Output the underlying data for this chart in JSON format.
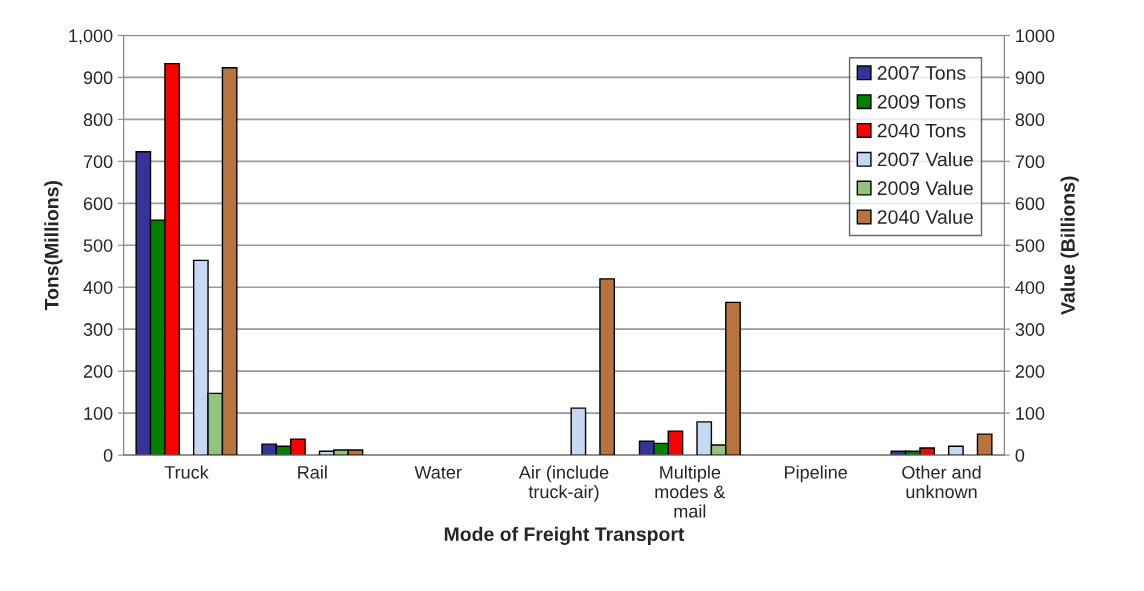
{
  "chart_data": {
    "type": "bar",
    "xlabel": "Mode of Freight Transport",
    "ylabel": "Tons(Millions)",
    "y2label": "Value (Billions)",
    "categories": [
      "Truck",
      "Rail",
      "Water",
      "Air (include\ntruck-air)",
      "Multiple\nmodes &\nmail",
      "Pipeline",
      "Other and\nunknown"
    ],
    "series": [
      {
        "name": "2007 Tons",
        "color": "#333399",
        "values": [
          723,
          26,
          null,
          null,
          33,
          null,
          9
        ]
      },
      {
        "name": "2009 Tons",
        "color": "#008000",
        "values": [
          560,
          21,
          null,
          null,
          28,
          null,
          9
        ]
      },
      {
        "name": "2040 Tons",
        "color": "#ff0000",
        "values": [
          933,
          38,
          null,
          null,
          57,
          null,
          17
        ]
      },
      {
        "name": "2007 Value",
        "color": "#c5d9f1",
        "axis": "y2",
        "values": [
          464,
          9,
          null,
          112,
          79,
          null,
          21
        ]
      },
      {
        "name": "2009 Value",
        "color": "#92c47d",
        "axis": "y2",
        "values": [
          147,
          12,
          null,
          null,
          24,
          null,
          null
        ]
      },
      {
        "name": "2040 Value",
        "color": "#b8733f",
        "axis": "y2",
        "values": [
          923,
          12,
          null,
          420,
          364,
          null,
          50
        ]
      }
    ],
    "ylim": [
      0,
      1000
    ],
    "yticks": [
      0,
      100,
      200,
      300,
      400,
      500,
      600,
      700,
      800,
      900,
      {
        "value": 1000,
        "label": "1,000"
      }
    ],
    "y2lim": [
      0,
      1000
    ],
    "y2ticks": [
      0,
      100,
      200,
      300,
      400,
      500,
      600,
      700,
      800,
      900,
      1000
    ],
    "grid": "y",
    "legend": "top right"
  }
}
